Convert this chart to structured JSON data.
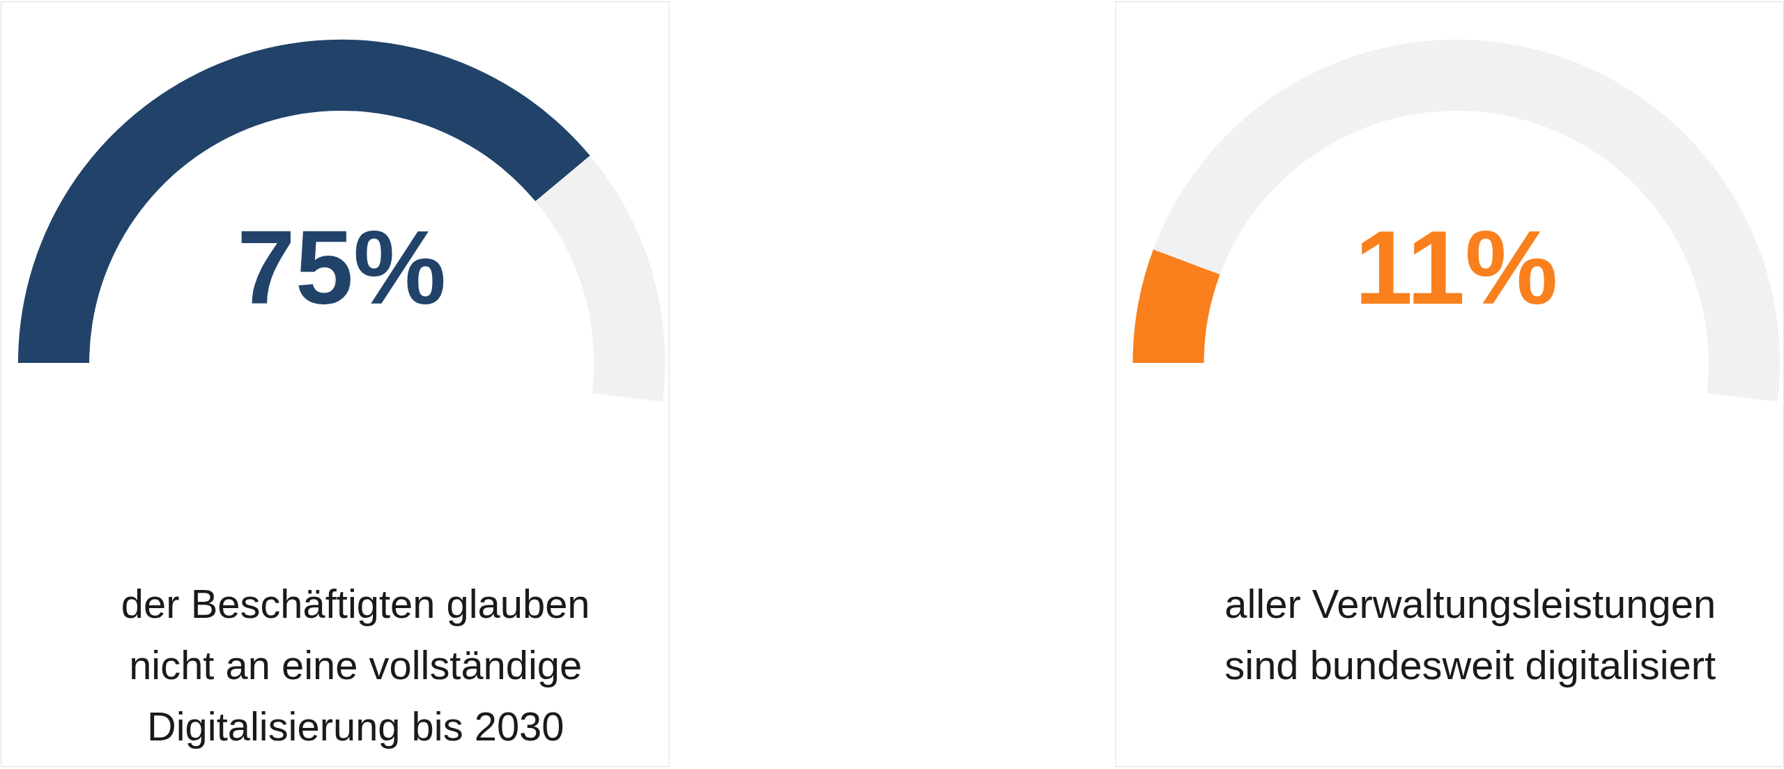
{
  "chart_data": [
    {
      "type": "donut",
      "categories": [
        null,
        null
      ],
      "values": [
        75,
        25
      ],
      "colors": [
        "#21436a",
        "#f1f1f1"
      ],
      "title": "75%",
      "annotations": [
        "der Beschäftigten glauben\nnicht an eine vollständige\nDigitalisierung bis 2030"
      ]
    },
    {
      "type": "donut",
      "categories": [
        null,
        null
      ],
      "values": [
        11,
        89
      ],
      "colors": [
        "#f9801d",
        "#f1f1f1"
      ],
      "title": "11%",
      "annotations": [
        "aller Verwaltungsleistungen\nsind bundesweit digitalisiert"
      ]
    }
  ]
}
